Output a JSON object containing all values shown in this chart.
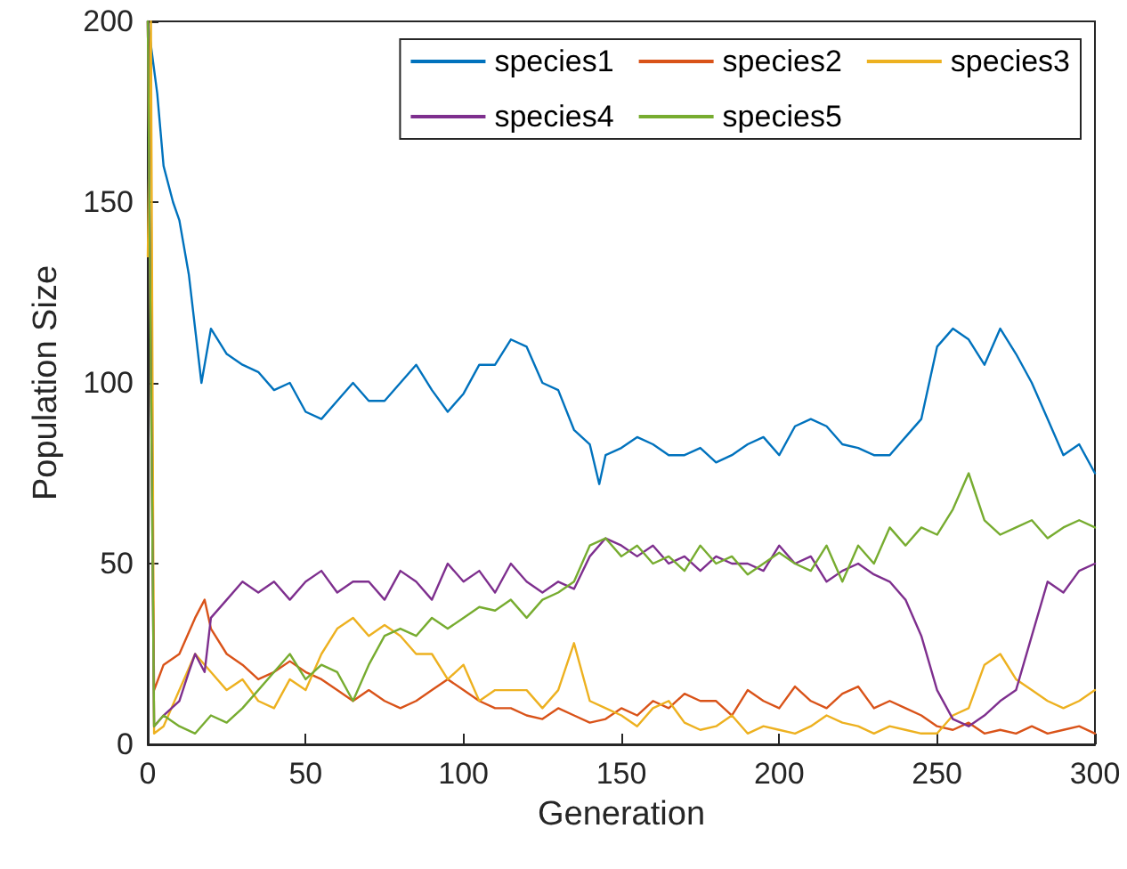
{
  "chart_data": {
    "type": "line",
    "xlabel": "Generation",
    "ylabel": "Population Size",
    "xlim": [
      0,
      300
    ],
    "ylim": [
      0,
      200
    ],
    "xticks": [
      0,
      50,
      100,
      150,
      200,
      250,
      300
    ],
    "yticks": [
      0,
      50,
      100,
      150,
      200
    ],
    "grid": false,
    "legend": "top right",
    "marker": "none",
    "line_style": "solid",
    "series": [
      {
        "name": "species1",
        "color": "#0072bd",
        "x": [
          0,
          3,
          5,
          8,
          10,
          13,
          15,
          17,
          20,
          25,
          30,
          35,
          40,
          45,
          50,
          55,
          60,
          65,
          70,
          75,
          80,
          85,
          90,
          95,
          100,
          105,
          110,
          115,
          120,
          125,
          130,
          135,
          140,
          143,
          145,
          150,
          155,
          160,
          165,
          170,
          175,
          180,
          185,
          190,
          195,
          200,
          205,
          210,
          215,
          220,
          225,
          230,
          235,
          240,
          245,
          250,
          255,
          260,
          265,
          270,
          275,
          280,
          285,
          290,
          295,
          300
        ],
        "values": [
          200,
          180,
          160,
          150,
          145,
          130,
          115,
          100,
          115,
          108,
          105,
          103,
          98,
          100,
          92,
          90,
          95,
          100,
          95,
          95,
          100,
          105,
          98,
          92,
          97,
          105,
          105,
          112,
          110,
          100,
          98,
          87,
          83,
          72,
          80,
          82,
          85,
          83,
          80,
          80,
          82,
          78,
          80,
          83,
          85,
          80,
          88,
          90,
          88,
          83,
          82,
          80,
          80,
          85,
          90,
          110,
          115,
          112,
          105,
          115,
          108,
          100,
          90,
          80,
          83,
          75
        ]
      },
      {
        "name": "species2",
        "color": "#d95319",
        "x": [
          0,
          2,
          5,
          10,
          15,
          18,
          20,
          25,
          30,
          35,
          40,
          45,
          50,
          55,
          60,
          65,
          70,
          75,
          80,
          85,
          90,
          95,
          100,
          105,
          110,
          115,
          120,
          125,
          130,
          135,
          140,
          145,
          150,
          155,
          160,
          165,
          170,
          175,
          180,
          185,
          190,
          195,
          200,
          205,
          210,
          215,
          220,
          225,
          230,
          235,
          240,
          245,
          250,
          255,
          260,
          265,
          270,
          275,
          280,
          285,
          290,
          295,
          300
        ],
        "values": [
          200,
          15,
          22,
          25,
          35,
          40,
          32,
          25,
          22,
          18,
          20,
          23,
          20,
          18,
          15,
          12,
          15,
          12,
          10,
          12,
          15,
          18,
          15,
          12,
          10,
          10,
          8,
          7,
          10,
          8,
          6,
          7,
          10,
          8,
          12,
          10,
          14,
          12,
          12,
          8,
          15,
          12,
          10,
          16,
          12,
          10,
          14,
          16,
          10,
          12,
          10,
          8,
          5,
          4,
          6,
          3,
          4,
          3,
          5,
          3,
          4,
          5,
          3
        ]
      },
      {
        "name": "species3",
        "color": "#edb120",
        "x": [
          0,
          1,
          2,
          5,
          10,
          15,
          20,
          25,
          30,
          35,
          40,
          45,
          50,
          55,
          60,
          65,
          70,
          75,
          80,
          85,
          90,
          95,
          100,
          105,
          110,
          115,
          120,
          125,
          130,
          135,
          140,
          145,
          150,
          155,
          160,
          165,
          170,
          175,
          180,
          185,
          190,
          195,
          200,
          205,
          210,
          215,
          220,
          225,
          230,
          235,
          240,
          245,
          250,
          255,
          260,
          265,
          270,
          275,
          280,
          285,
          290,
          295,
          300
        ],
        "values": [
          135,
          200,
          3,
          5,
          15,
          25,
          20,
          15,
          18,
          12,
          10,
          18,
          15,
          25,
          32,
          35,
          30,
          33,
          30,
          25,
          25,
          18,
          22,
          12,
          15,
          15,
          15,
          10,
          15,
          28,
          12,
          10,
          8,
          5,
          10,
          12,
          6,
          4,
          5,
          8,
          3,
          5,
          4,
          3,
          5,
          8,
          6,
          5,
          3,
          5,
          4,
          3,
          3,
          8,
          10,
          22,
          25,
          18,
          15,
          12,
          10,
          12,
          15
        ]
      },
      {
        "name": "species4",
        "color": "#7e2f8e",
        "x": [
          0,
          2,
          5,
          10,
          13,
          15,
          18,
          20,
          25,
          30,
          35,
          40,
          45,
          50,
          55,
          60,
          65,
          70,
          75,
          80,
          85,
          90,
          95,
          100,
          105,
          110,
          115,
          120,
          125,
          130,
          135,
          140,
          145,
          150,
          155,
          160,
          165,
          170,
          175,
          180,
          185,
          190,
          195,
          200,
          205,
          210,
          215,
          220,
          225,
          230,
          235,
          240,
          245,
          250,
          255,
          260,
          265,
          270,
          275,
          280,
          285,
          290,
          295,
          300
        ],
        "values": [
          200,
          5,
          8,
          12,
          20,
          25,
          20,
          35,
          40,
          45,
          42,
          45,
          40,
          45,
          48,
          42,
          45,
          45,
          40,
          48,
          45,
          40,
          50,
          45,
          48,
          42,
          50,
          45,
          42,
          45,
          43,
          52,
          57,
          55,
          52,
          55,
          50,
          52,
          48,
          52,
          50,
          50,
          48,
          55,
          50,
          52,
          45,
          48,
          50,
          47,
          45,
          40,
          30,
          15,
          7,
          5,
          8,
          12,
          15,
          30,
          45,
          42,
          48,
          50
        ]
      },
      {
        "name": "species5",
        "color": "#77ac30",
        "x": [
          0,
          2,
          5,
          10,
          15,
          20,
          25,
          30,
          35,
          40,
          45,
          50,
          55,
          60,
          65,
          70,
          75,
          80,
          85,
          90,
          95,
          100,
          105,
          110,
          115,
          120,
          125,
          130,
          135,
          140,
          145,
          150,
          155,
          160,
          165,
          170,
          175,
          180,
          185,
          190,
          195,
          200,
          205,
          210,
          215,
          220,
          225,
          230,
          235,
          240,
          245,
          250,
          255,
          260,
          265,
          270,
          275,
          280,
          285,
          290,
          295,
          300
        ],
        "values": [
          200,
          5,
          8,
          5,
          3,
          8,
          6,
          10,
          15,
          20,
          25,
          18,
          22,
          20,
          12,
          22,
          30,
          32,
          30,
          35,
          32,
          35,
          38,
          37,
          40,
          35,
          40,
          42,
          45,
          55,
          57,
          52,
          55,
          50,
          52,
          48,
          55,
          50,
          52,
          47,
          50,
          53,
          50,
          48,
          55,
          45,
          55,
          50,
          60,
          55,
          60,
          58,
          65,
          75,
          62,
          58,
          60,
          62,
          57,
          60,
          62,
          60
        ]
      }
    ]
  }
}
